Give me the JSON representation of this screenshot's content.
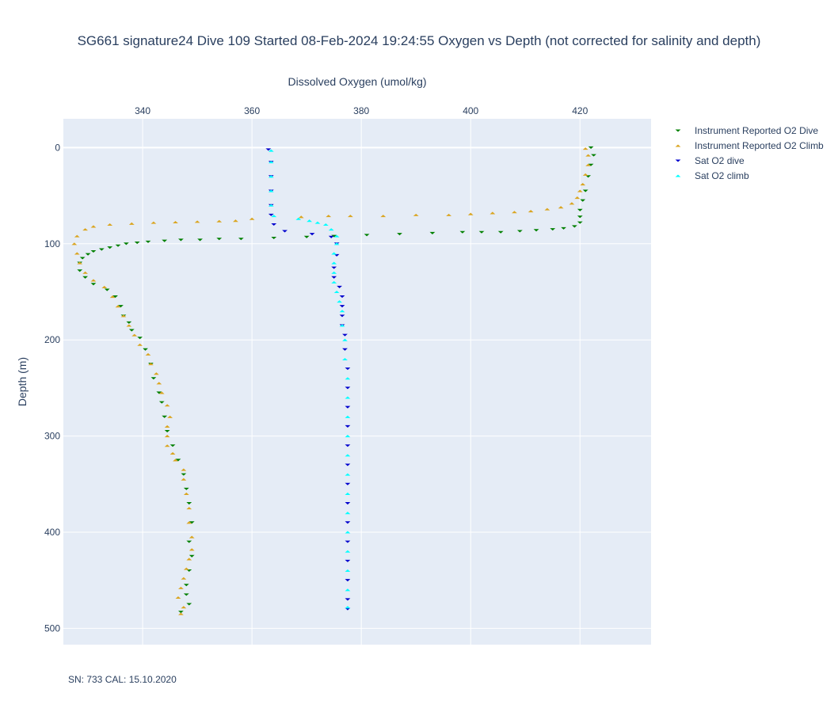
{
  "chart_data": {
    "type": "scatter",
    "title": "SG661 signature24 Dive 109 Started 08-Feb-2024 19:24:55  Oxygen vs Depth (not corrected for salinity and depth)",
    "xlabel": "Dissolved Oxygen (umol/kg)",
    "ylabel": "Depth (m)",
    "xlim": [
      325.5,
      433
    ],
    "ylim": [
      517,
      -30
    ],
    "x_ticks": [
      340,
      360,
      380,
      400,
      420
    ],
    "y_ticks": [
      0,
      100,
      200,
      300,
      400,
      500
    ],
    "x_axis_position": "top",
    "y_axis_reversed": true,
    "grid": true,
    "legend_position": "right",
    "footnote": "SN: 733  CAL: 15.10.2020",
    "series": [
      {
        "name": "Instrument Reported O2 Dive",
        "marker": "triangle-down",
        "color": "#008000",
        "points": [
          [
            422,
            0
          ],
          [
            422.5,
            8
          ],
          [
            422,
            18
          ],
          [
            421.5,
            30
          ],
          [
            421,
            45
          ],
          [
            420.5,
            55
          ],
          [
            420,
            65
          ],
          [
            420,
            72
          ],
          [
            420,
            78
          ],
          [
            419,
            82
          ],
          [
            417,
            84
          ],
          [
            415,
            85
          ],
          [
            412,
            86
          ],
          [
            409,
            87
          ],
          [
            405.5,
            88
          ],
          [
            402,
            88
          ],
          [
            398.5,
            88
          ],
          [
            393,
            89
          ],
          [
            387,
            90
          ],
          [
            381,
            91
          ],
          [
            375,
            92
          ],
          [
            370,
            93
          ],
          [
            364,
            94
          ],
          [
            358,
            95
          ],
          [
            354,
            95
          ],
          [
            350.5,
            96
          ],
          [
            347,
            96
          ],
          [
            344,
            97
          ],
          [
            341,
            98
          ],
          [
            339,
            99
          ],
          [
            337,
            100
          ],
          [
            335.5,
            102
          ],
          [
            334,
            104
          ],
          [
            332.5,
            106
          ],
          [
            331,
            108
          ],
          [
            330,
            111
          ],
          [
            329,
            115
          ],
          [
            328.5,
            120
          ],
          [
            328.5,
            128
          ],
          [
            329.5,
            135
          ],
          [
            331,
            142
          ],
          [
            333.5,
            148
          ],
          [
            335,
            155
          ],
          [
            336,
            165
          ],
          [
            336.5,
            175
          ],
          [
            337.5,
            182
          ],
          [
            338,
            190
          ],
          [
            339.5,
            198
          ],
          [
            340.5,
            210
          ],
          [
            341.5,
            225
          ],
          [
            342,
            240
          ],
          [
            343,
            255
          ],
          [
            343.5,
            265
          ],
          [
            344,
            280
          ],
          [
            344.5,
            295
          ],
          [
            345.5,
            310
          ],
          [
            346.5,
            325
          ],
          [
            347.5,
            340
          ],
          [
            348,
            355
          ],
          [
            348.5,
            370
          ],
          [
            349,
            390
          ],
          [
            348.5,
            410
          ],
          [
            349,
            425
          ],
          [
            348.5,
            440
          ],
          [
            348,
            455
          ],
          [
            348,
            465
          ],
          [
            348.5,
            475
          ],
          [
            347,
            483
          ]
        ]
      },
      {
        "name": "Instrument Reported O2 Climb",
        "marker": "triangle-up",
        "color": "#DAA520",
        "points": [
          [
            347,
            485
          ],
          [
            347.5,
            478
          ],
          [
            346.5,
            468
          ],
          [
            347,
            458
          ],
          [
            347.5,
            448
          ],
          [
            348,
            438
          ],
          [
            348.5,
            428
          ],
          [
            349,
            418
          ],
          [
            349,
            405
          ],
          [
            348.5,
            390
          ],
          [
            348.5,
            375
          ],
          [
            348,
            360
          ],
          [
            347.5,
            345
          ],
          [
            347.5,
            335
          ],
          [
            346,
            325
          ],
          [
            345.5,
            318
          ],
          [
            344.5,
            310
          ],
          [
            344.5,
            300
          ],
          [
            344.5,
            290
          ],
          [
            345,
            280
          ],
          [
            344.5,
            268
          ],
          [
            343.5,
            255
          ],
          [
            343,
            245
          ],
          [
            342.5,
            235
          ],
          [
            341.5,
            225
          ],
          [
            341,
            215
          ],
          [
            339.5,
            205
          ],
          [
            338.5,
            195
          ],
          [
            337.5,
            185
          ],
          [
            336.5,
            175
          ],
          [
            335.5,
            165
          ],
          [
            334.5,
            155
          ],
          [
            333,
            145
          ],
          [
            331,
            138
          ],
          [
            329.5,
            130
          ],
          [
            328.5,
            120
          ],
          [
            328,
            110
          ],
          [
            327.5,
            100
          ],
          [
            328,
            92
          ],
          [
            329.5,
            85
          ],
          [
            331,
            82
          ],
          [
            334,
            80
          ],
          [
            338,
            79
          ],
          [
            342,
            78
          ],
          [
            346,
            77.5
          ],
          [
            350,
            77
          ],
          [
            354,
            76.5
          ],
          [
            357,
            76
          ],
          [
            360,
            74
          ],
          [
            369,
            72
          ],
          [
            374,
            71
          ],
          [
            378,
            71
          ],
          [
            384,
            71
          ],
          [
            390,
            70
          ],
          [
            396,
            70
          ],
          [
            400,
            69
          ],
          [
            404,
            68
          ],
          [
            408,
            67
          ],
          [
            411,
            66
          ],
          [
            414,
            64
          ],
          [
            416.5,
            62
          ],
          [
            418.5,
            58
          ],
          [
            419.5,
            52
          ],
          [
            420,
            45
          ],
          [
            420.5,
            38
          ],
          [
            421,
            28
          ],
          [
            421.5,
            18
          ],
          [
            421.5,
            8
          ],
          [
            421,
            1
          ]
        ]
      },
      {
        "name": "Sat O2 dive",
        "marker": "triangle-down",
        "color": "#0000CD",
        "points": [
          [
            363,
            2
          ],
          [
            363.5,
            15
          ],
          [
            363.5,
            30
          ],
          [
            363.5,
            45
          ],
          [
            363.5,
            60
          ],
          [
            363.5,
            70
          ],
          [
            364,
            80
          ],
          [
            366,
            87
          ],
          [
            371,
            90
          ],
          [
            374.5,
            93
          ],
          [
            375.5,
            100
          ],
          [
            375.5,
            112
          ],
          [
            375,
            125
          ],
          [
            375,
            135
          ],
          [
            376,
            145
          ],
          [
            376.5,
            155
          ],
          [
            376.5,
            165
          ],
          [
            376.5,
            175
          ],
          [
            376.5,
            185
          ],
          [
            377,
            195
          ],
          [
            377,
            210
          ],
          [
            377.5,
            230
          ],
          [
            377.5,
            250
          ],
          [
            377.5,
            270
          ],
          [
            377.5,
            290
          ],
          [
            377.5,
            310
          ],
          [
            377.5,
            330
          ],
          [
            377.5,
            350
          ],
          [
            377.5,
            370
          ],
          [
            377.5,
            390
          ],
          [
            377.5,
            410
          ],
          [
            377.5,
            430
          ],
          [
            377.5,
            450
          ],
          [
            377.5,
            470
          ],
          [
            377.5,
            480
          ]
        ]
      },
      {
        "name": "Sat O2 climb",
        "marker": "triangle-up",
        "color": "#00FFFF",
        "points": [
          [
            377.5,
            478
          ],
          [
            377.5,
            460
          ],
          [
            377.5,
            440
          ],
          [
            377.5,
            420
          ],
          [
            377.5,
            400
          ],
          [
            377.5,
            380
          ],
          [
            377.5,
            360
          ],
          [
            377.5,
            340
          ],
          [
            377.5,
            320
          ],
          [
            377.5,
            300
          ],
          [
            377.5,
            280
          ],
          [
            377.5,
            260
          ],
          [
            377.5,
            240
          ],
          [
            377,
            220
          ],
          [
            377,
            200
          ],
          [
            376.5,
            185
          ],
          [
            376.5,
            170
          ],
          [
            376,
            160
          ],
          [
            375.5,
            150
          ],
          [
            375,
            140
          ],
          [
            375,
            130
          ],
          [
            375,
            120
          ],
          [
            375,
            110
          ],
          [
            375.5,
            100
          ],
          [
            375.5,
            92
          ],
          [
            374.5,
            85
          ],
          [
            373.5,
            80
          ],
          [
            372,
            78
          ],
          [
            370.5,
            76
          ],
          [
            368.5,
            74
          ],
          [
            364,
            71
          ],
          [
            363.5,
            60
          ],
          [
            363.5,
            45
          ],
          [
            363.5,
            30
          ],
          [
            363.5,
            15
          ],
          [
            363.5,
            3
          ]
        ]
      }
    ]
  }
}
